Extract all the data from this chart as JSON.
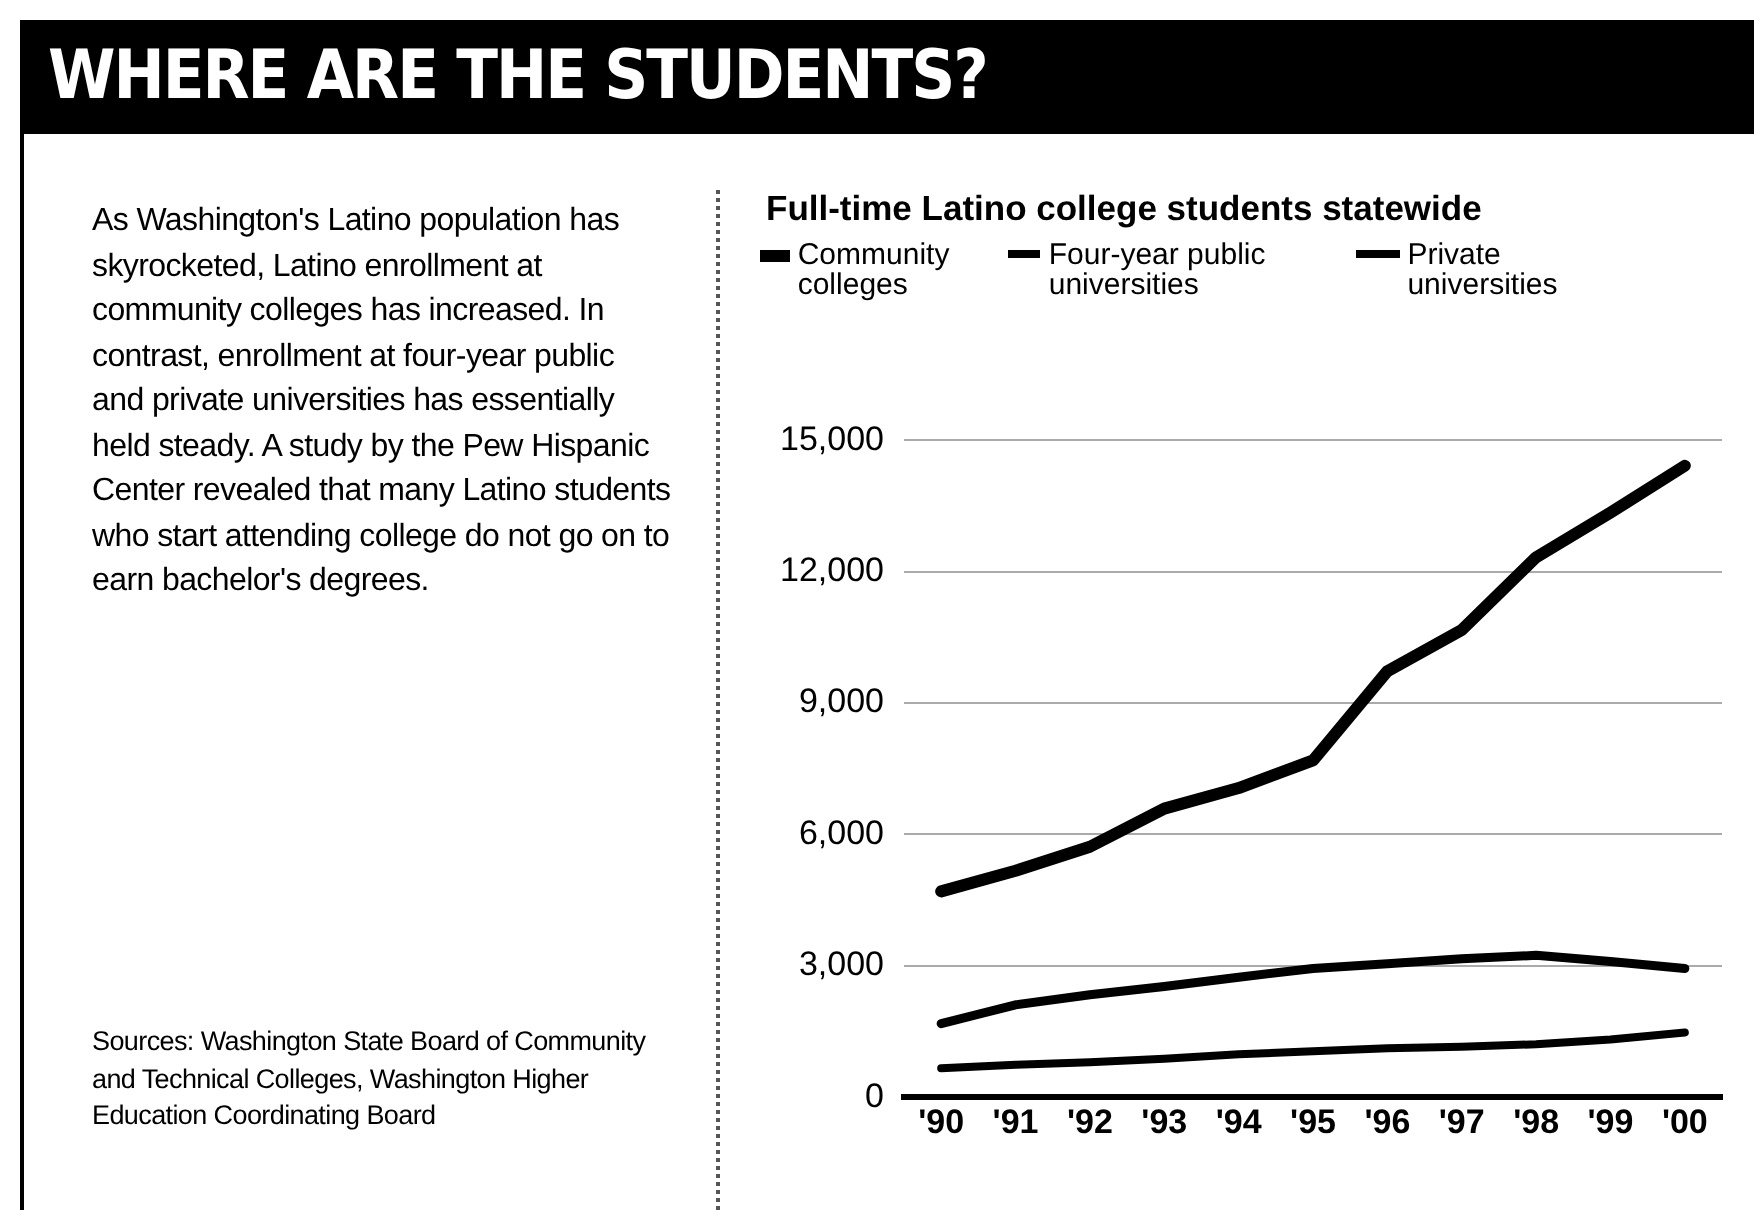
{
  "chart_data": {
    "type": "line",
    "title": "WHERE ARE THE STUDENTS?",
    "subtitle": "Full-time Latino college students statewide",
    "annotations": [
      "As Washington's Latino population has skyrocketed, Latino enrollment at community colleges has increased. In contrast, enrollment at four-year public and private universities has essentially held steady. A study by the Pew Hispanic Center revealed that many Latino students who start attending college do not go on to earn bachelor's degrees.",
      "Sources: Washington State Board of Community and Technical Colleges, Washington Higher Education Coordinating Board"
    ],
    "categories": [
      "'90",
      "'91",
      "'92",
      "'93",
      "'94",
      "'95",
      "'96",
      "'97",
      "'98",
      "'99",
      "'00"
    ],
    "series": [
      {
        "name": "Community colleges",
        "color": "#000000",
        "values": [
          4700,
          5170,
          5720,
          6590,
          7060,
          7690,
          9730,
          10670,
          12330,
          13350,
          14420
        ]
      },
      {
        "name": "Four-year public universities",
        "color": "#000000",
        "values": [
          1680,
          2110,
          2340,
          2530,
          2740,
          2940,
          3050,
          3160,
          3240,
          3100,
          2940
        ]
      },
      {
        "name": "Private universities",
        "color": "#000000",
        "values": [
          660,
          740,
          800,
          880,
          980,
          1050,
          1120,
          1150,
          1210,
          1320,
          1480
        ]
      }
    ],
    "ylim": [
      0,
      15000
    ],
    "yticks": [
      0,
      {
        "value": 3000,
        "label": "3,000"
      },
      {
        "value": 6000,
        "label": "6,000"
      },
      {
        "value": 9000,
        "label": "9,000"
      },
      {
        "value": 12000,
        "label": "12,000"
      },
      {
        "value": 15000,
        "label": "15,000"
      }
    ],
    "grid": "y",
    "legend": "top",
    "marker": "none",
    "line_style": "solid"
  }
}
